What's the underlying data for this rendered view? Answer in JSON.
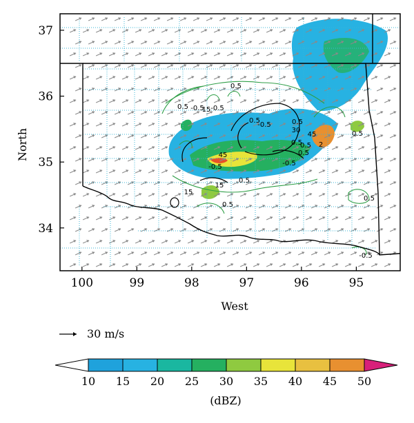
{
  "map": {
    "x_axis": {
      "label": "West",
      "ticks": [
        "100",
        "99",
        "98",
        "97",
        "96",
        "95"
      ],
      "values": [
        100,
        99,
        98,
        97,
        96,
        95
      ]
    },
    "y_axis": {
      "label": "North",
      "ticks": [
        "34",
        "35",
        "36",
        "37"
      ],
      "values": [
        34,
        35,
        36,
        37
      ]
    },
    "lon_range_west": [
      100.4,
      94.2
    ],
    "lat_range": [
      33.35,
      37.25
    ],
    "vector_reference": {
      "label": "30 m/s",
      "speed": 30
    },
    "contour_labels": [
      "0.5",
      "0.5",
      "-0.5",
      "15",
      "-0.5",
      "0.5",
      "-0.5",
      "30",
      "45",
      "-0.5",
      "15",
      "0.5",
      "0.5",
      "0.5",
      "0.5",
      "0.5",
      "0.5",
      "-0.5",
      "15",
      "0.5",
      "-0.5",
      "45",
      "0.5",
      "2"
    ],
    "colorbar": {
      "unit_label": "(dBZ)",
      "levels": [
        "10",
        "15",
        "20",
        "25",
        "30",
        "35",
        "40",
        "45",
        "50"
      ],
      "colors": [
        "#ffffff",
        "#1fa2dc",
        "#27b2e2",
        "#1ab7a0",
        "#25b060",
        "#8fca40",
        "#e8e43a",
        "#e8c040",
        "#e89030",
        "#e85028",
        "#d8207a"
      ]
    }
  }
}
